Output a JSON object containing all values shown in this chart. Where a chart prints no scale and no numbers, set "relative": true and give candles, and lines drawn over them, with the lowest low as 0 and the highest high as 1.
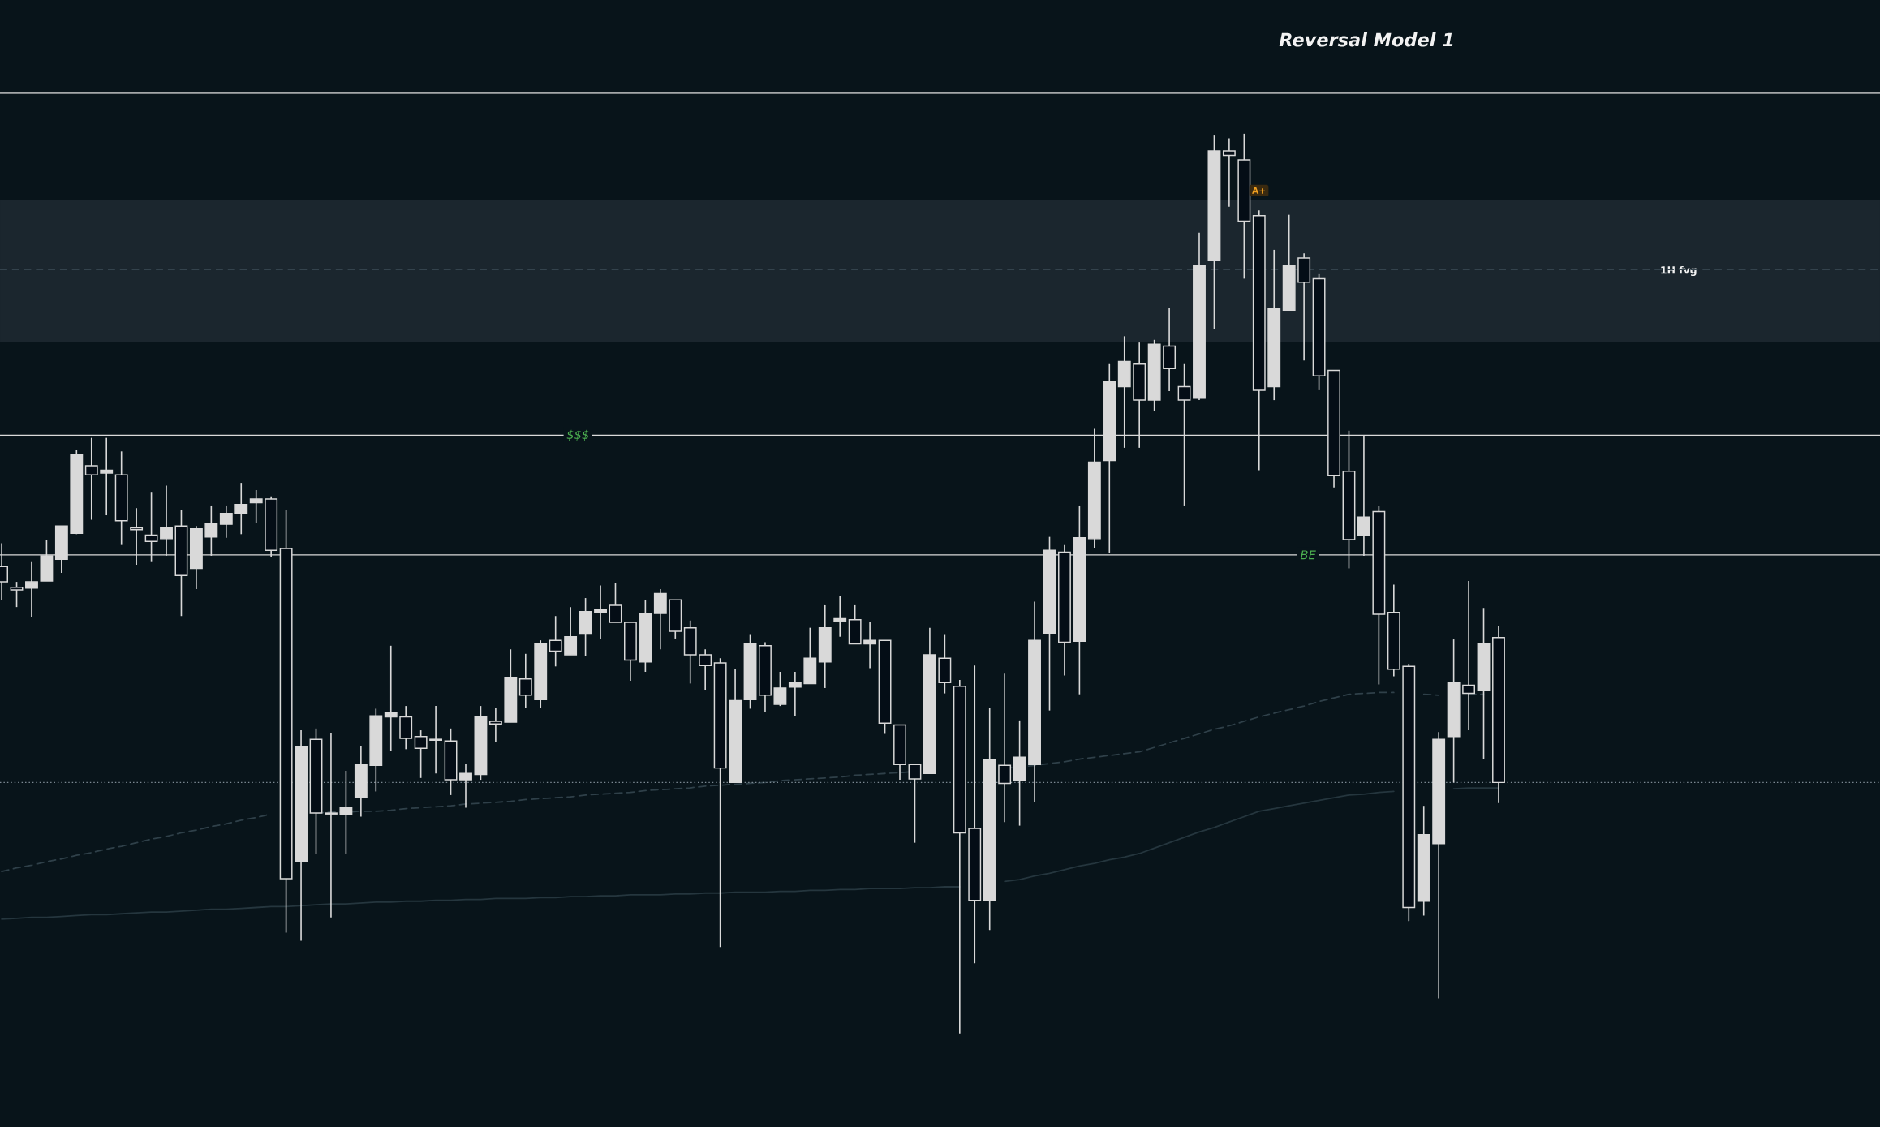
{
  "chart_data": {
    "type": "candlestick",
    "title": "Reversal Model 1",
    "relative": true,
    "color": "#d9d9d9",
    "categories": [
      null,
      null,
      null,
      null,
      null,
      null,
      null,
      null,
      null,
      null,
      null,
      null,
      null,
      null,
      null,
      null,
      null,
      null,
      null,
      null,
      null,
      null,
      null,
      null,
      null,
      null,
      null,
      null,
      null,
      null,
      null,
      null,
      null,
      null,
      null,
      null,
      null,
      null,
      null,
      null,
      null,
      null,
      null,
      null,
      null,
      null,
      null,
      null,
      null,
      null,
      null,
      null,
      null,
      null,
      null,
      null,
      null,
      null,
      null,
      null,
      null,
      null,
      null,
      null,
      null,
      null,
      null,
      null,
      null,
      null,
      null,
      null,
      null,
      null,
      null,
      null,
      null,
      null,
      null,
      null,
      null,
      null,
      null,
      null,
      null,
      null,
      null,
      null,
      null,
      null,
      null,
      null,
      null,
      null,
      null,
      null,
      null,
      null,
      null,
      null,
      null
    ],
    "ohlc": [
      [
        0.519,
        0.545,
        0.482,
        0.502
      ],
      [
        0.496,
        0.502,
        0.474,
        0.493
      ],
      [
        0.495,
        0.524,
        0.463,
        0.502
      ],
      [
        0.503,
        0.549,
        0.503,
        0.531
      ],
      [
        0.527,
        0.564,
        0.512,
        0.564
      ],
      [
        0.556,
        0.649,
        0.555,
        0.643
      ],
      [
        0.631,
        0.662,
        0.571,
        0.621
      ],
      [
        0.623,
        0.662,
        0.576,
        0.626
      ],
      [
        0.621,
        0.647,
        0.543,
        0.57
      ],
      [
        0.562,
        0.584,
        0.521,
        0.56
      ],
      [
        0.554,
        0.602,
        0.524,
        0.547
      ],
      [
        0.55,
        0.609,
        0.531,
        0.562
      ],
      [
        0.564,
        0.582,
        0.464,
        0.509
      ],
      [
        0.517,
        0.564,
        0.494,
        0.561
      ],
      [
        0.552,
        0.586,
        0.531,
        0.567
      ],
      [
        0.566,
        0.586,
        0.551,
        0.578
      ],
      [
        0.578,
        0.612,
        0.555,
        0.588
      ],
      [
        0.59,
        0.604,
        0.567,
        0.594
      ],
      [
        0.594,
        0.597,
        0.53,
        0.537
      ],
      [
        0.539,
        0.582,
        0.112,
        0.172
      ],
      [
        0.191,
        0.337,
        0.103,
        0.319
      ],
      [
        0.327,
        0.339,
        0.2,
        0.245
      ],
      [
        0.245,
        0.334,
        0.129,
        0.244
      ],
      [
        0.243,
        0.292,
        0.2,
        0.251
      ],
      [
        0.262,
        0.319,
        0.241,
        0.299
      ],
      [
        0.298,
        0.361,
        0.269,
        0.353
      ],
      [
        0.352,
        0.431,
        0.314,
        0.357
      ],
      [
        0.352,
        0.364,
        0.316,
        0.328
      ],
      [
        0.33,
        0.337,
        0.284,
        0.317
      ],
      [
        0.327,
        0.364,
        0.289,
        0.326
      ],
      [
        0.325,
        0.339,
        0.265,
        0.282
      ],
      [
        0.282,
        0.3,
        0.251,
        0.289
      ],
      [
        0.288,
        0.364,
        0.282,
        0.352
      ],
      [
        0.347,
        0.362,
        0.324,
        0.344
      ],
      [
        0.346,
        0.427,
        0.346,
        0.396
      ],
      [
        0.394,
        0.422,
        0.362,
        0.376
      ],
      [
        0.371,
        0.437,
        0.362,
        0.433
      ],
      [
        0.437,
        0.464,
        0.408,
        0.425
      ],
      [
        0.421,
        0.474,
        0.421,
        0.441
      ],
      [
        0.444,
        0.484,
        0.42,
        0.469
      ],
      [
        0.468,
        0.498,
        0.439,
        0.471
      ],
      [
        0.476,
        0.501,
        0.457,
        0.457
      ],
      [
        0.457,
        0.457,
        0.392,
        0.415
      ],
      [
        0.413,
        0.482,
        0.402,
        0.467
      ],
      [
        0.467,
        0.494,
        0.427,
        0.489
      ],
      [
        0.482,
        0.482,
        0.439,
        0.447
      ],
      [
        0.451,
        0.459,
        0.389,
        0.421
      ],
      [
        0.421,
        0.427,
        0.382,
        0.409
      ],
      [
        0.412,
        0.417,
        0.096,
        0.295
      ],
      [
        0.279,
        0.405,
        0.279,
        0.37
      ],
      [
        0.371,
        0.443,
        0.361,
        0.433
      ],
      [
        0.431,
        0.435,
        0.357,
        0.376
      ],
      [
        0.366,
        0.402,
        0.364,
        0.384
      ],
      [
        0.385,
        0.402,
        0.353,
        0.39
      ],
      [
        0.389,
        0.451,
        0.389,
        0.417
      ],
      [
        0.413,
        0.476,
        0.384,
        0.451
      ],
      [
        0.458,
        0.486,
        0.441,
        0.461
      ],
      [
        0.46,
        0.476,
        0.433,
        0.433
      ],
      [
        0.433,
        0.458,
        0.406,
        0.437
      ],
      [
        0.437,
        0.437,
        0.333,
        0.345
      ],
      [
        0.343,
        0.343,
        0.282,
        0.299
      ],
      [
        0.299,
        0.299,
        0.212,
        0.283
      ],
      [
        0.289,
        0.451,
        0.289,
        0.421
      ],
      [
        0.417,
        0.443,
        0.378,
        0.39
      ],
      [
        0.386,
        0.393,
        0,
        0.223
      ],
      [
        0.228,
        0.409,
        0.078,
        0.148
      ],
      [
        0.148,
        0.362,
        0.115,
        0.304
      ],
      [
        0.298,
        0.4,
        0.235,
        0.278
      ],
      [
        0.281,
        0.348,
        0.231,
        0.307
      ],
      [
        0.299,
        0.48,
        0.257,
        0.437
      ],
      [
        0.445,
        0.552,
        0.359,
        0.537
      ],
      [
        0.535,
        0.543,
        0.398,
        0.435
      ],
      [
        0.436,
        0.586,
        0.377,
        0.551
      ],
      [
        0.55,
        0.672,
        0.539,
        0.635
      ],
      [
        0.637,
        0.744,
        0.534,
        0.725
      ],
      [
        0.719,
        0.775,
        0.651,
        0.747
      ],
      [
        0.744,
        0.768,
        0.651,
        0.704
      ],
      [
        0.704,
        0.771,
        0.692,
        0.766
      ],
      [
        0.764,
        0.807,
        0.714,
        0.739
      ],
      [
        0.719,
        0.744,
        0.586,
        0.704
      ],
      [
        0.706,
        0.89,
        0.704,
        0.854
      ],
      [
        0.859,
        0.998,
        0.783,
        0.981
      ],
      [
        0.981,
        0.995,
        0.919,
        0.976
      ],
      [
        0.971,
        1,
        0.839,
        0.903
      ],
      [
        0.909,
        0.915,
        0.626,
        0.715
      ],
      [
        0.719,
        0.871,
        0.704,
        0.806
      ],
      [
        0.804,
        0.91,
        0.804,
        0.854
      ],
      [
        0.862,
        0.867,
        0.748,
        0.835
      ],
      [
        0.839,
        0.844,
        0.715,
        0.731
      ],
      [
        0.737,
        0.737,
        0.607,
        0.62
      ],
      [
        0.625,
        0.67,
        0.517,
        0.549
      ],
      [
        0.554,
        0.665,
        0.531,
        0.574
      ],
      [
        0.58,
        0.586,
        0.388,
        0.466
      ],
      [
        0.468,
        0.499,
        0.397,
        0.405
      ],
      [
        0.408,
        0.411,
        0.125,
        0.14
      ],
      [
        0.147,
        0.253,
        0.131,
        0.221
      ],
      [
        0.211,
        0.335,
        0.039,
        0.327
      ],
      [
        0.33,
        0.438,
        0.279,
        0.39
      ],
      [
        0.387,
        0.503,
        0.337,
        0.378
      ],
      [
        0.381,
        0.473,
        0.305,
        0.433
      ],
      [
        0.44,
        0.453,
        0.256,
        0.279
      ]
    ],
    "series": [
      {
        "type": "line",
        "color": "#2f4049",
        "line_style": "dashed",
        "values": [
          0.18,
          0.184,
          0.187,
          0.191,
          0.194,
          0.198,
          0.201,
          0.205,
          0.208,
          0.212,
          0.216,
          0.219,
          0.223,
          0.226,
          0.23,
          0.233,
          0.237,
          0.24,
          0.244,
          null,
          null,
          0.245,
          0.246,
          0.246,
          0.247,
          0.247,
          0.248,
          0.25,
          0.251,
          0.252,
          0.253,
          0.255,
          0.256,
          0.257,
          0.258,
          0.26,
          0.261,
          0.262,
          0.263,
          0.265,
          0.266,
          0.267,
          0.268,
          0.27,
          0.271,
          0.272,
          0.273,
          0.275,
          0.276,
          0.277,
          0.278,
          0.279,
          0.281,
          0.282,
          0.283,
          0.284,
          0.285,
          0.287,
          0.288,
          0.289,
          0.29,
          0.291,
          null,
          null,
          null,
          null,
          null,
          0.295,
          0.296,
          0.298,
          0.3,
          0.302,
          0.305,
          0.307,
          0.309,
          0.311,
          0.313,
          0.318,
          0.323,
          0.328,
          0.333,
          0.338,
          0.342,
          0.347,
          0.352,
          0.356,
          0.36,
          0.364,
          0.369,
          0.373,
          0.377,
          0.378,
          0.379,
          0.379,
          null,
          0.377,
          0.376,
          null,
          0.377,
          0.377,
          null
        ]
      },
      {
        "type": "line",
        "color": "#25363e",
        "line_style": "solid",
        "values": [
          0.127,
          0.128,
          0.129,
          0.129,
          0.13,
          0.131,
          0.132,
          0.132,
          0.133,
          0.134,
          0.135,
          0.135,
          0.136,
          0.137,
          0.138,
          0.138,
          0.139,
          0.14,
          0.141,
          0.141,
          0.142,
          0.143,
          0.144,
          0.144,
          0.145,
          0.146,
          0.146,
          0.147,
          0.147,
          0.148,
          0.148,
          0.149,
          0.149,
          0.15,
          0.15,
          0.15,
          0.151,
          0.151,
          0.152,
          0.152,
          0.153,
          0.153,
          0.154,
          0.154,
          0.154,
          0.155,
          0.155,
          0.156,
          0.156,
          0.157,
          0.157,
          0.157,
          0.158,
          0.158,
          0.159,
          0.159,
          0.16,
          0.16,
          0.161,
          0.161,
          0.161,
          0.162,
          0.162,
          0.163,
          0.163,
          null,
          null,
          0.169,
          0.171,
          0.175,
          0.178,
          0.182,
          0.186,
          0.189,
          0.193,
          0.196,
          0.2,
          0.206,
          0.212,
          0.218,
          0.224,
          0.229,
          0.235,
          0.241,
          0.247,
          0.25,
          0.253,
          0.256,
          0.259,
          0.262,
          0.265,
          0.266,
          0.268,
          0.269,
          null,
          null,
          null,
          0.272,
          0.273,
          0.273,
          0.273
        ]
      }
    ],
    "ref_lines": [
      {
        "axis": "y",
        "value": 1.045,
        "color": "#d9d9d9"
      },
      {
        "axis": "y",
        "value": 0.665,
        "label": "$$$",
        "color": "#d9d9d9"
      },
      {
        "axis": "y",
        "value": 0.532,
        "label": "BE",
        "color": "#d9d9d9"
      },
      {
        "axis": "y",
        "value": 0.849,
        "color": "#34434d",
        "line_style": "dashed"
      },
      {
        "axis": "y",
        "value": 0.279,
        "color": "#7d8a94",
        "line_style": "dotted"
      }
    ],
    "bands": [
      {
        "axis": "y",
        "from": 0.769,
        "to": 0.926,
        "label": "1H fvg",
        "color": "#1b262e"
      }
    ],
    "annotations": [
      "A+"
    ]
  }
}
